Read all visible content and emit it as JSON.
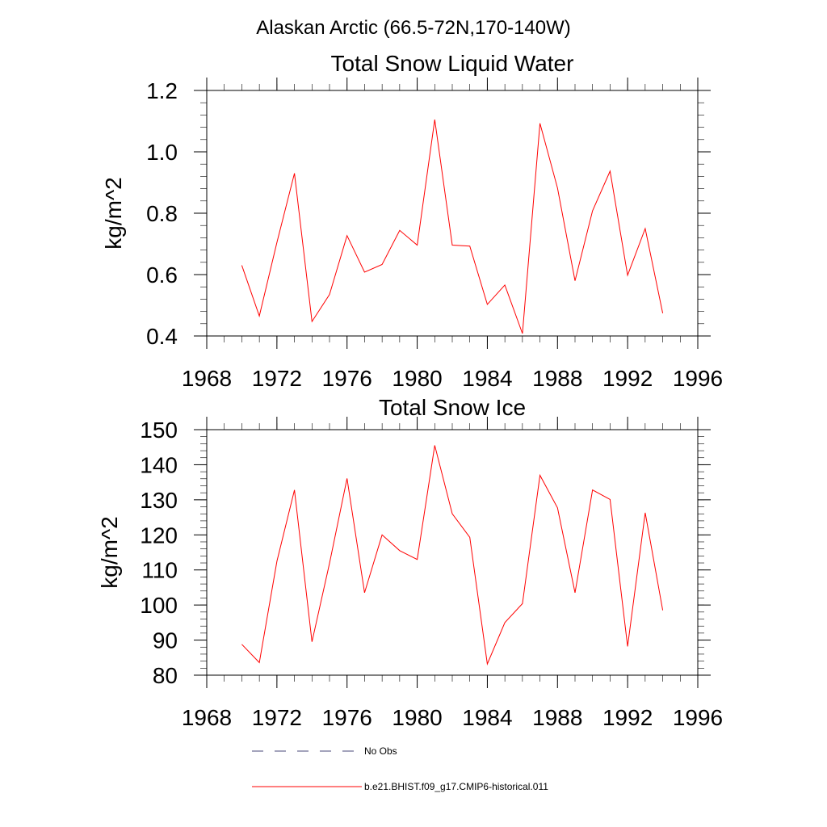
{
  "figure": {
    "title": "Alaskan Arctic (66.5-72N,170-140W)"
  },
  "colors": {
    "series": "#ff0000",
    "no_obs": "#4a4a7a",
    "axis": "#000000"
  },
  "chart_data": [
    {
      "type": "line",
      "title": "Total Snow Liquid Water",
      "xlabel": "",
      "ylabel": "kg/m^2",
      "xlim": [
        1968,
        1996
      ],
      "ylim": [
        0.4,
        1.2
      ],
      "x_ticks": [
        1968,
        1972,
        1976,
        1980,
        1984,
        1988,
        1992,
        1996
      ],
      "y_ticks": [
        "0.4",
        "0.6",
        "0.8",
        "1.0",
        "1.2"
      ],
      "grid": false,
      "series": [
        {
          "name": "b.e21.BHIST.f09_g17.CMIP6-historical.011",
          "x": [
            1970,
            1971,
            1972,
            1973,
            1974,
            1975,
            1976,
            1977,
            1978,
            1979,
            1980,
            1981,
            1982,
            1983,
            1984,
            1985,
            1986,
            1987,
            1988,
            1989,
            1990,
            1991,
            1992,
            1993,
            1994
          ],
          "values": [
            0.63,
            0.465,
            0.705,
            0.93,
            0.447,
            0.535,
            0.727,
            0.608,
            0.633,
            0.744,
            0.696,
            1.105,
            0.696,
            0.693,
            0.503,
            0.566,
            0.408,
            1.093,
            0.882,
            0.58,
            0.808,
            0.937,
            0.598,
            0.75,
            0.474
          ]
        }
      ]
    },
    {
      "type": "line",
      "title": "Total Snow Ice",
      "xlabel": "",
      "ylabel": "kg/m^2",
      "xlim": [
        1968,
        1996
      ],
      "ylim": [
        80,
        150
      ],
      "x_ticks": [
        1968,
        1972,
        1976,
        1980,
        1984,
        1988,
        1992,
        1996
      ],
      "y_ticks": [
        "80",
        "90",
        "100",
        "110",
        "120",
        "130",
        "140",
        "150"
      ],
      "grid": false,
      "series": [
        {
          "name": "b.e21.BHIST.f09_g17.CMIP6-historical.011",
          "x": [
            1970,
            1971,
            1972,
            1973,
            1974,
            1975,
            1976,
            1977,
            1978,
            1979,
            1980,
            1981,
            1982,
            1983,
            1984,
            1985,
            1986,
            1987,
            1988,
            1989,
            1990,
            1991,
            1992,
            1993,
            1994
          ],
          "values": [
            88.8,
            83.6,
            112.5,
            132.8,
            89.5,
            111.9,
            136.1,
            103.5,
            120.0,
            115.5,
            113.0,
            145.5,
            126.0,
            119.3,
            83.2,
            95.0,
            100.4,
            137.0,
            127.7,
            103.5,
            132.8,
            130.1,
            88.2,
            126.3,
            98.5
          ]
        }
      ]
    }
  ],
  "legend": {
    "placement": "bottom",
    "entries": [
      {
        "label": "No Obs",
        "style": "dashed",
        "color": "#4a4a7a"
      },
      {
        "label": "b.e21.BHIST.f09_g17.CMIP6-historical.011",
        "style": "solid",
        "color": "#ff0000"
      }
    ]
  }
}
